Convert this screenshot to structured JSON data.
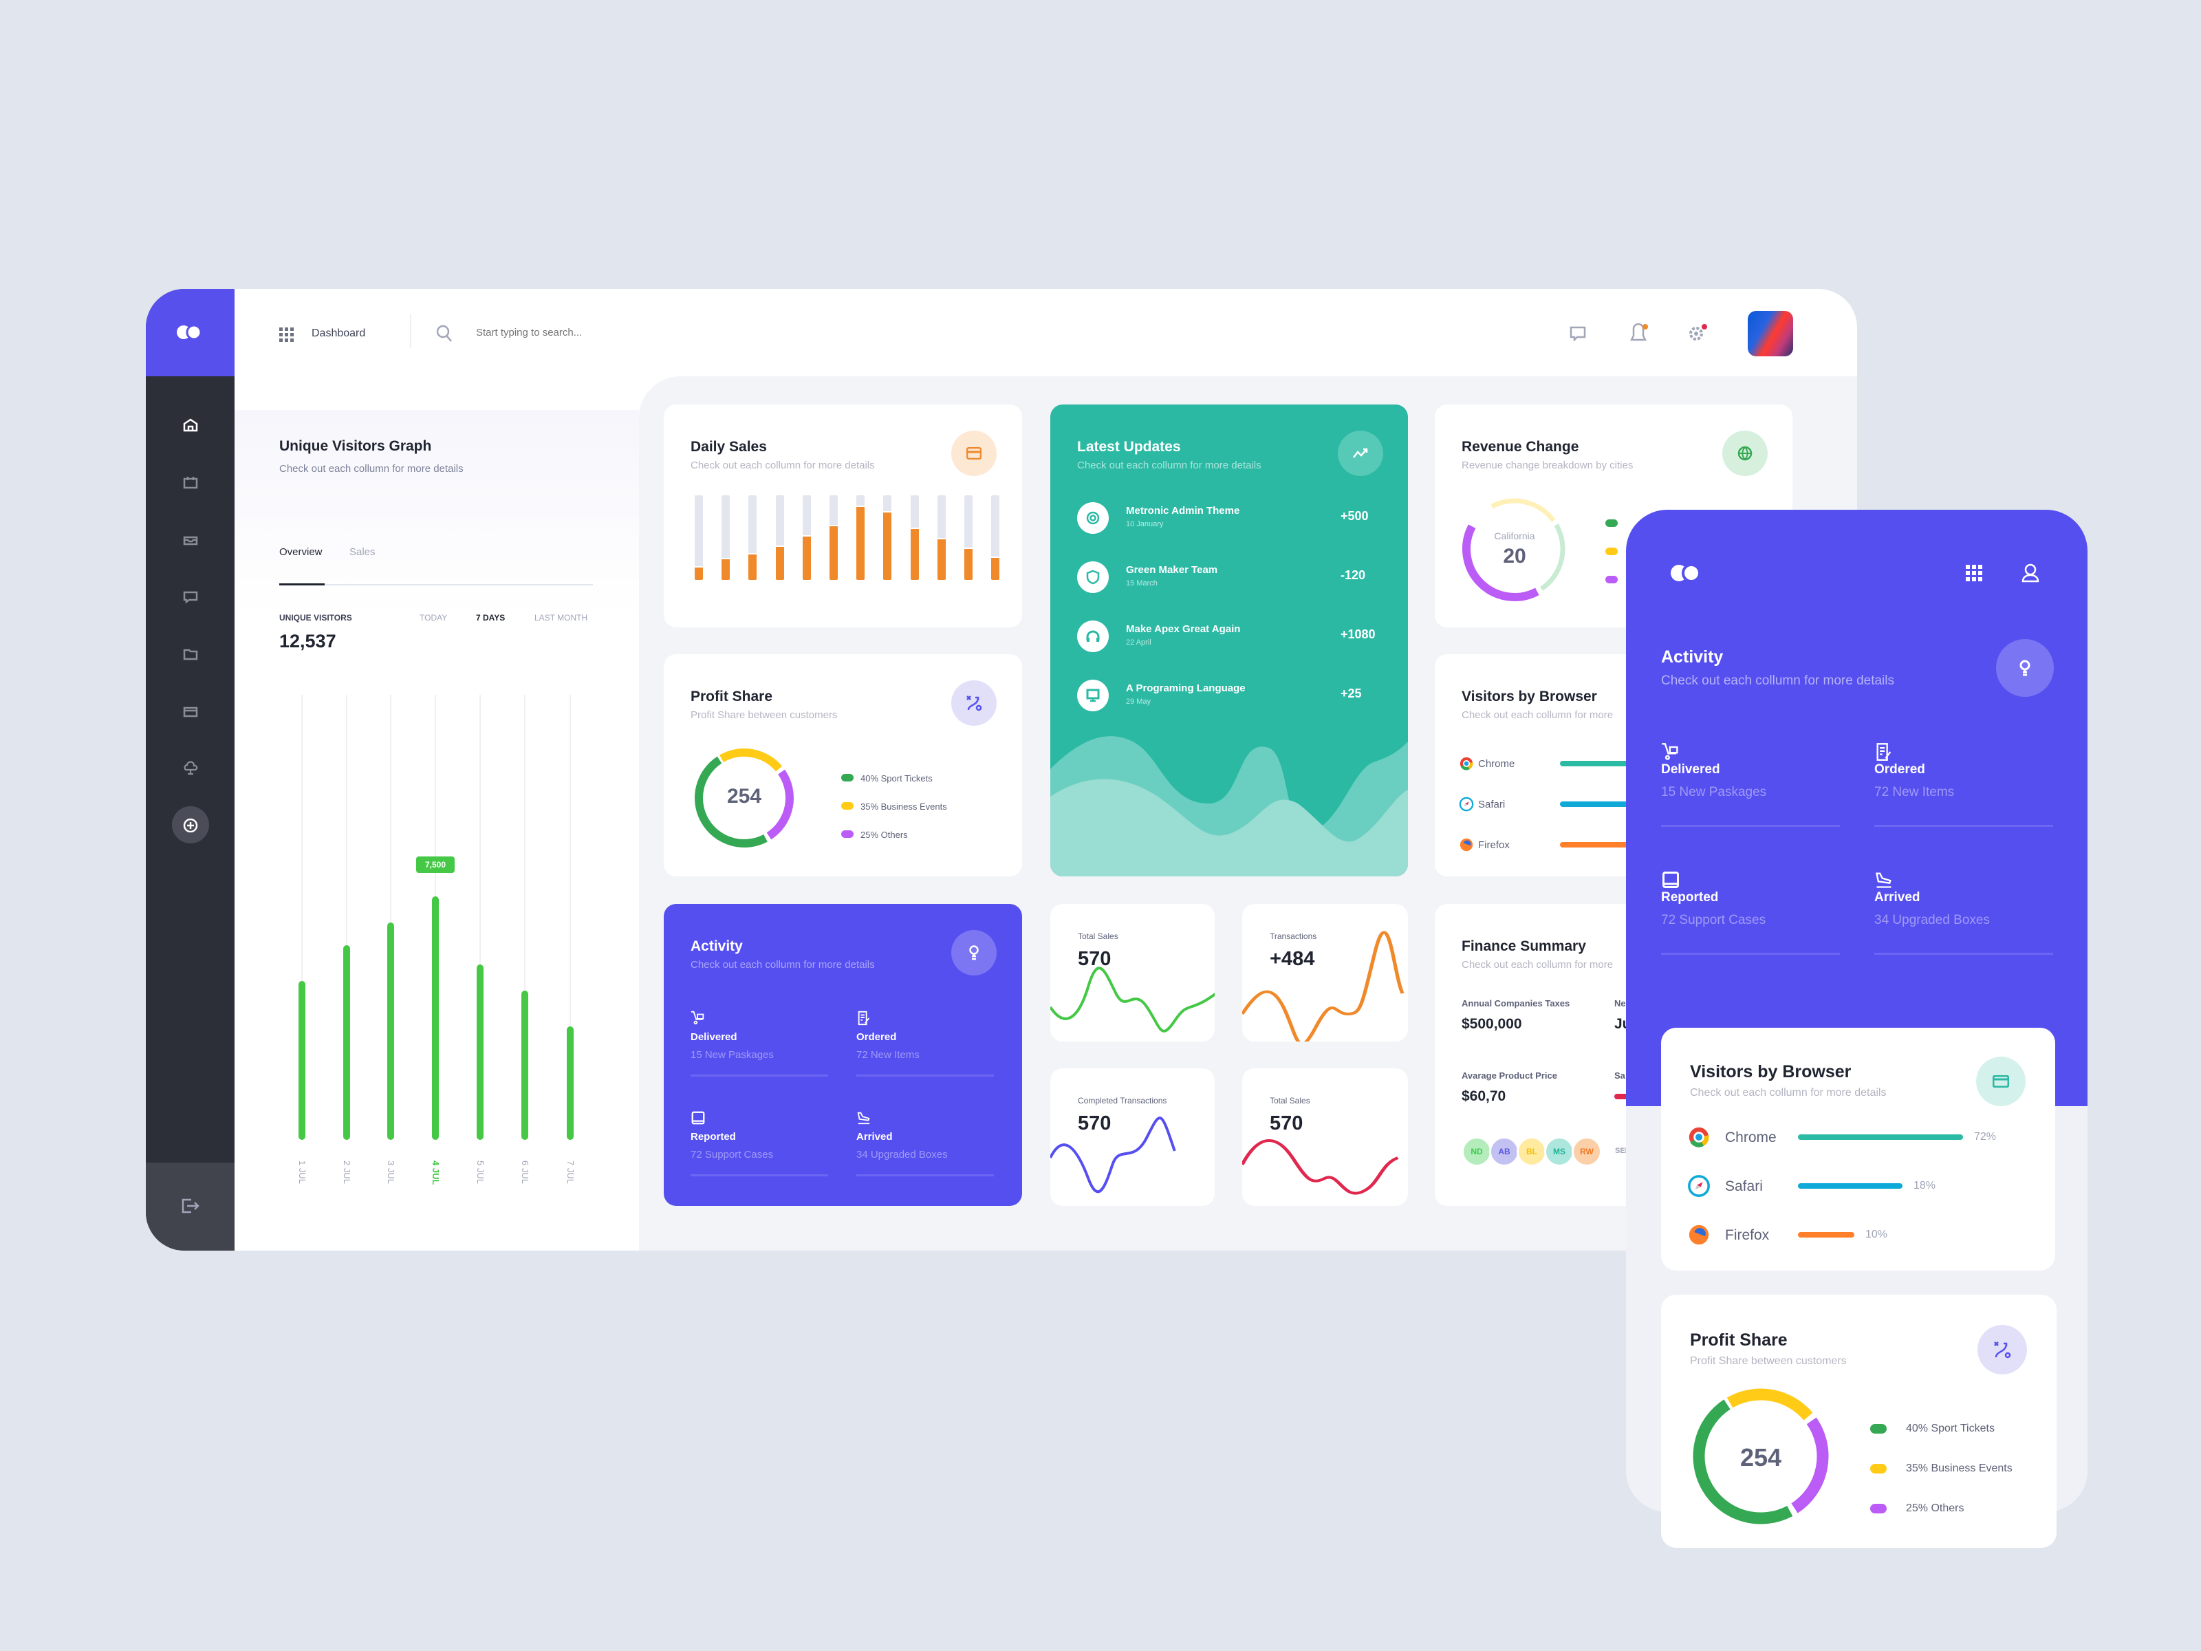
{
  "header": {
    "title": "Dashboard",
    "search_placeholder": "Start typing to search..."
  },
  "sidebar": {
    "items": [
      "home",
      "calendar",
      "inbox",
      "messages",
      "folder",
      "wallet",
      "cloud",
      "add"
    ],
    "active": "home"
  },
  "visitors_graph": {
    "title": "Unique Visitors Graph",
    "subtitle": "Check out each collumn for more details",
    "tabs": [
      "Overview",
      "Sales"
    ],
    "active_tab": "Overview",
    "stat_label": "UNIQUE VISITORS",
    "stat_value": "12,537",
    "ranges": [
      "TODAY",
      "7 DAYS",
      "LAST MONTH"
    ],
    "active_range": "7 DAYS",
    "tooltip": "7,500"
  },
  "daily_sales": {
    "title": "Daily Sales",
    "subtitle": "Check out each collumn for more details"
  },
  "latest_updates": {
    "title": "Latest Updates",
    "subtitle": "Check out each collumn for more details",
    "items": [
      {
        "icon": "target-icon",
        "title": "Metronic Admin Theme",
        "date": "10 January",
        "value": "+500"
      },
      {
        "icon": "shield-icon",
        "title": "Green Maker Team",
        "date": "15 March",
        "value": "-120"
      },
      {
        "icon": "headphones-icon",
        "title": "Make Apex Great Again",
        "date": "22 April",
        "value": "+1080"
      },
      {
        "icon": "monitor-icon",
        "title": "A Programing Language",
        "date": "29 May",
        "value": "+25"
      }
    ]
  },
  "revenue_change": {
    "title": "Revenue Change",
    "subtitle": "Revenue change breakdown by cities",
    "center_label": "California",
    "center_value": "20",
    "segments": [
      {
        "color": "#fff0b8",
        "fraction": 0.24
      },
      {
        "color": "#c9ebd4",
        "fraction": 0.24
      },
      {
        "color": "#bb5cf7",
        "fraction": 0.42
      }
    ],
    "legend_colors": [
      "#34a853",
      "#ffcb17",
      "#bb5cf7"
    ]
  },
  "profit_share": {
    "title": "Profit Share",
    "subtitle": "Profit Share between customers",
    "center_value": "254",
    "legend": [
      "40% Sport Tickets",
      "35% Business Events",
      "25% Others"
    ]
  },
  "visitors_by_browser": {
    "title": "Visitors by Browser",
    "subtitle": "Check out each collumn for more details",
    "subtitle_clipped": "Check out each collumn for more",
    "browsers": [
      {
        "name": "Chrome",
        "percent": 72,
        "label": "72%",
        "color": "#2bbba5"
      },
      {
        "name": "Safari",
        "percent": 18,
        "label": "18%",
        "color": "#0fa9d8"
      },
      {
        "name": "Firefox",
        "percent": 10,
        "label": "10%",
        "color": "#ff7f2a"
      }
    ]
  },
  "activity": {
    "title": "Activity",
    "subtitle": "Check out each collumn for more details",
    "items": [
      {
        "icon": "cart-icon",
        "label": "Delivered",
        "sub": "15 New Paskages"
      },
      {
        "icon": "order-icon",
        "label": "Ordered",
        "sub": "72 New Items"
      },
      {
        "icon": "tablet-icon",
        "label": "Reported",
        "sub": "72 Support Cases"
      },
      {
        "icon": "plane-icon",
        "label": "Arrived",
        "sub": "34 Upgraded Boxes"
      }
    ]
  },
  "stats": [
    {
      "label": "Total Sales",
      "value": "570",
      "color": "#45c845"
    },
    {
      "label": "Transactions",
      "value": "+484",
      "color": "#f0892a"
    },
    {
      "label": "Completed Transactions",
      "value": "570",
      "color": "#564ff0"
    },
    {
      "label": "Total Sales",
      "value": "570",
      "color": "#e0284f"
    }
  ],
  "finance": {
    "title": "Finance Summary",
    "subtitle": "Check out each collumn for more",
    "items": [
      {
        "label": "Annual Companies Taxes",
        "value": "$500,000"
      },
      {
        "label": "Avarage Product Price",
        "value": "$60,70"
      }
    ],
    "clipped": {
      "label1": "Ne",
      "value1": "Ju",
      "label2": "Sa"
    },
    "avatars": [
      {
        "t": "ND",
        "bg": "#b4ecbc",
        "fg": "#3ccb4b"
      },
      {
        "t": "AB",
        "bg": "#c2c1f2",
        "fg": "#5b56e0"
      },
      {
        "t": "BL",
        "bg": "#ffeaa0",
        "fg": "#f5c000"
      },
      {
        "t": "MS",
        "bg": "#ade6dc",
        "fg": "#20b29a"
      },
      {
        "t": "RW",
        "bg": "#fbcfa8",
        "fg": "#f07a22"
      }
    ],
    "see_more": "SEE"
  },
  "colors": {
    "purple": "#564ff0",
    "teal": "#2bb9a4",
    "orange": "#f0892a",
    "green": "#45c845",
    "sidebar": "#2c2f38"
  },
  "chart_data": [
    {
      "type": "bar",
      "categories": [
        "1 JUL",
        "2 JUL",
        "3 JUL",
        "4 JUL",
        "5 JUL",
        "6 JUL",
        "7 JUL"
      ],
      "values": [
        4900,
        6000,
        6700,
        7500,
        5400,
        4600,
        3500
      ],
      "highlight": "4 JUL",
      "ylim": [
        0,
        13700
      ]
    },
    {
      "type": "bar",
      "name_ref": "daily_sales",
      "values": [
        16,
        26,
        32,
        41,
        53,
        65,
        88,
        81,
        62,
        50,
        38,
        28
      ],
      "ylim": [
        0,
        100
      ]
    },
    {
      "type": "pie",
      "labels": [
        "Sport Tickets",
        "Business Events",
        "Others"
      ],
      "values": [
        40,
        35,
        25
      ],
      "colors": [
        "#34a853",
        "#ffcb17",
        "#bb5cf7"
      ]
    }
  ]
}
